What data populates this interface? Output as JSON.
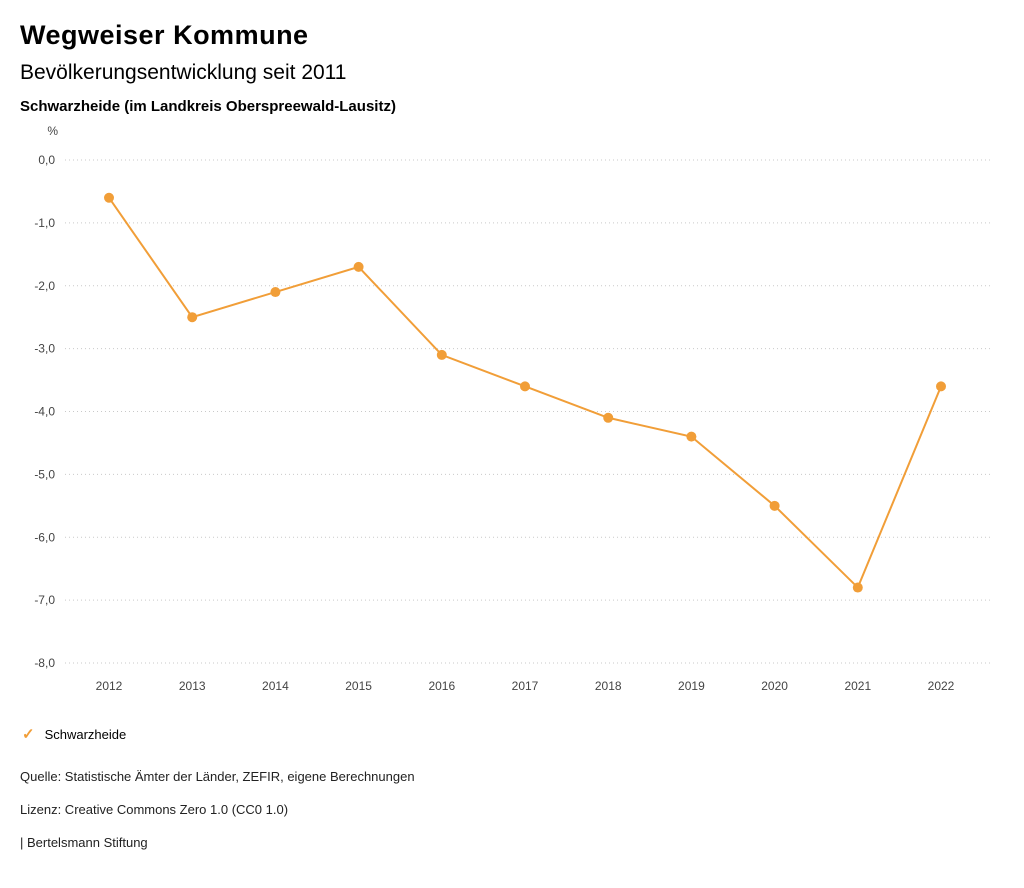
{
  "header": {
    "title": "Wegweiser Kommune",
    "subtitle": "Bevölkerungsentwicklung seit 2011",
    "region": "Schwarzheide (im Landkreis Oberspreewald-Lausitz)"
  },
  "chart_data": {
    "type": "line",
    "unit": "%",
    "categories": [
      "2012",
      "2013",
      "2014",
      "2015",
      "2016",
      "2017",
      "2018",
      "2019",
      "2020",
      "2021",
      "2022"
    ],
    "series": [
      {
        "name": "Schwarzheide",
        "color": "#f19e38",
        "values": [
          -0.6,
          -2.5,
          -2.1,
          -1.7,
          -3.1,
          -3.6,
          -4.1,
          -4.4,
          -5.5,
          -6.8,
          -3.6
        ]
      }
    ],
    "ylim": [
      -8,
      0
    ],
    "ytick_step": 1,
    "ytick_labels": [
      "0,0",
      "-1,0",
      "-2,0",
      "-3,0",
      "-4,0",
      "-5,0",
      "-6,0",
      "-7,0",
      "-8,0"
    ],
    "grid": "dotted-horizontal",
    "legend_position": "bottom-left",
    "title": "Bevölkerungsentwicklung seit 2011",
    "xlabel": "",
    "ylabel": "%"
  },
  "legend": {
    "items": [
      {
        "label": "Schwarzheide",
        "color": "#f19e38",
        "check_icon": "✓"
      }
    ]
  },
  "footer": {
    "source": "Quelle: Statistische Ämter der Länder, ZEFIR, eigene Berechnungen",
    "license": "Lizenz: Creative Commons Zero 1.0 (CC0 1.0)",
    "attribution": "| Bertelsmann Stiftung"
  }
}
